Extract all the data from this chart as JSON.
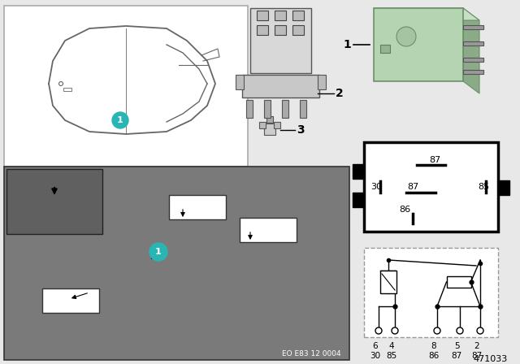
{
  "bg_color": "#e8e8e8",
  "white": "#ffffff",
  "black": "#000000",
  "teal_color": "#2ab5b5",
  "car_line_color": "#666666",
  "photo_bg": "#7a7a7a",
  "photo_dark": "#555555",
  "inset_bg": "#606060",
  "part_number": "471033",
  "eo_text": "EO E83 12 0004",
  "pin_labels_row1": [
    "6",
    "4",
    "8",
    "5",
    "2"
  ],
  "pin_labels_row2": [
    "30",
    "85",
    "86",
    "87",
    "87"
  ]
}
